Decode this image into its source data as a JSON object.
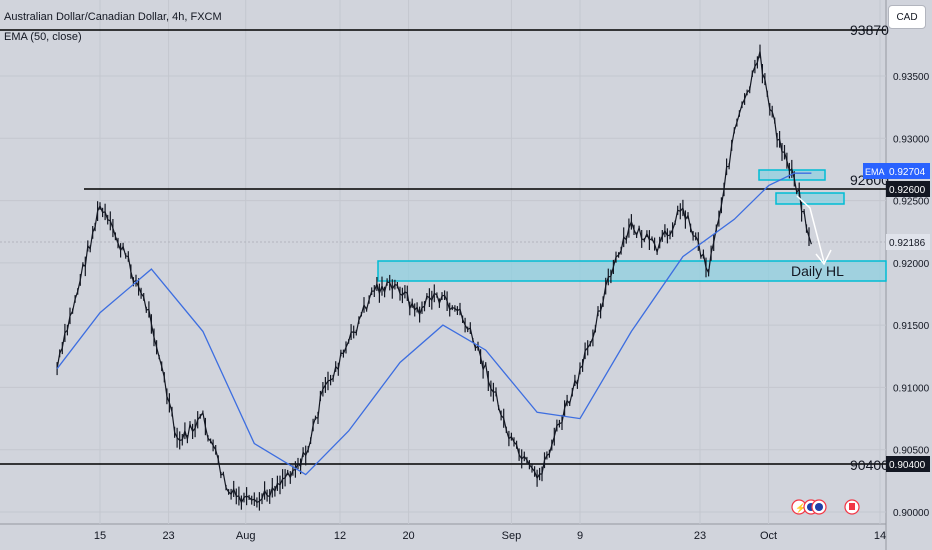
{
  "header": {
    "title": "Australian Dollar/Canadian Dollar, 4h, FXCM",
    "indicator": "EMA (50, close)",
    "currency_button": "CAD"
  },
  "chart_data": {
    "type": "line",
    "title": "Australian Dollar/Canadian Dollar, 4h, FXCM",
    "indicator_label": "EMA (50, close)",
    "y_ticks": [
      "0.93500",
      "0.93000",
      "0.92500",
      "0.92000",
      "0.91500",
      "0.91000",
      "0.90500",
      "0.90000"
    ],
    "x_ticks": [
      "15",
      "23",
      "Aug",
      "12",
      "20",
      "Sep",
      "9",
      "23",
      "Oct",
      "14"
    ],
    "ylim": [
      0.9,
      0.9375
    ],
    "grid": true,
    "series": [
      {
        "name": "AUDCAD",
        "color": "#131722",
        "x": [
          "Jul 10",
          "Jul 13",
          "Jul 15",
          "Jul 18",
          "Jul 21",
          "Jul 24",
          "Jul 27",
          "Jul 30",
          "Aug 2",
          "Aug 5",
          "Aug 8",
          "Aug 10",
          "Aug 13",
          "Aug 16",
          "Aug 19",
          "Aug 21",
          "Aug 23",
          "Aug 26",
          "Aug 29",
          "Sep 1",
          "Sep 4",
          "Sep 6",
          "Sep 9",
          "Sep 12",
          "Sep 15",
          "Sep 18",
          "Sep 21",
          "Sep 24",
          "Sep 27",
          "Sep 30",
          "Oct 2",
          "Oct 4",
          "Oct 6"
        ],
        "values": [
          0.9115,
          0.9195,
          0.9245,
          0.9205,
          0.9155,
          0.9055,
          0.9075,
          0.9015,
          0.9005,
          0.9025,
          0.9045,
          0.9095,
          0.9135,
          0.918,
          0.918,
          0.916,
          0.9175,
          0.916,
          0.9115,
          0.9055,
          0.9025,
          0.906,
          0.911,
          0.918,
          0.923,
          0.921,
          0.9245,
          0.9195,
          0.9305,
          0.9365,
          0.93,
          0.927,
          0.9215
        ]
      },
      {
        "name": "EMA",
        "color": "#3d6ee0",
        "x": [
          "Jul 10",
          "Jul 15",
          "Jul 21",
          "Jul 27",
          "Aug 2",
          "Aug 8",
          "Aug 13",
          "Aug 19",
          "Aug 24",
          "Aug 29",
          "Sep 4",
          "Sep 9",
          "Sep 15",
          "Sep 21",
          "Sep 27",
          "Oct 1",
          "Oct 4",
          "Oct 6"
        ],
        "values": [
          0.9115,
          0.916,
          0.9195,
          0.9145,
          0.9055,
          0.903,
          0.9065,
          0.912,
          0.915,
          0.913,
          0.908,
          0.9075,
          0.9145,
          0.9205,
          0.9235,
          0.9262,
          0.9272,
          0.9272
        ]
      }
    ],
    "levels": [
      {
        "value": 0.9387,
        "label": "93870"
      },
      {
        "value": 0.926,
        "label": "92600"
      },
      {
        "value": 0.904,
        "label": "90400"
      }
    ],
    "zones": [
      {
        "from": 0.919,
        "to": 0.92,
        "label": "Daily HL"
      },
      {
        "from": 0.9268,
        "to": 0.9273,
        "label": ""
      },
      {
        "from": 0.9249,
        "to": 0.9254,
        "label": ""
      }
    ],
    "price_labels": [
      {
        "text": "0.92704",
        "prefix": "EMA",
        "color": "#2962ff"
      },
      {
        "text": "0.92600",
        "color": "#131722"
      },
      {
        "text": "0.92186",
        "color": "#d1d4dc"
      },
      {
        "text": "0.90400",
        "color": "#131722"
      }
    ]
  }
}
